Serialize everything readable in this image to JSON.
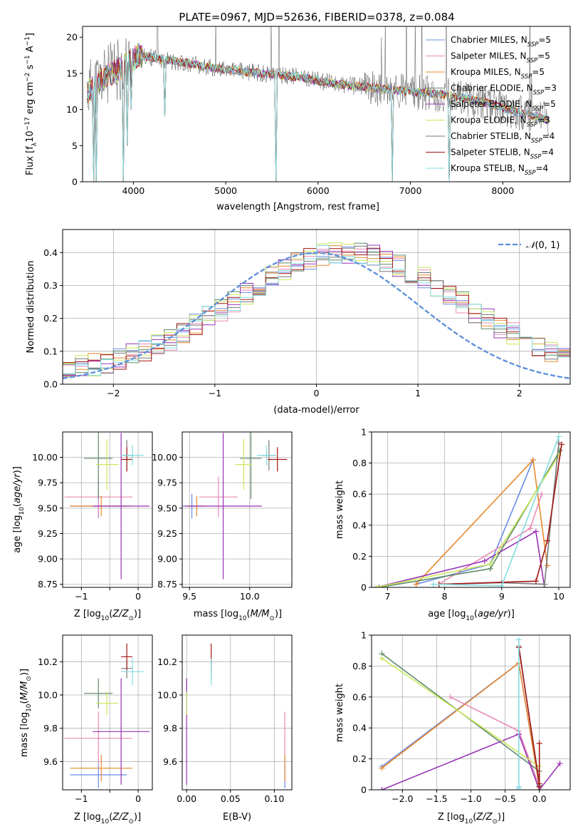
{
  "figure": {
    "title": "PLATE=0967, MJD=52636, FIBERID=0378, z=0.084"
  },
  "colors": {
    "Chabrier MILES": "#6b8ce6",
    "Salpeter MILES": "#e88ab8",
    "Kroupa MILES": "#e8892e",
    "Chabrier ELODIE": "#5e8a66",
    "Salpeter ELODIE": "#9933b5",
    "Kroupa ELODIE": "#c9e85a",
    "Chabrier STELIB": "#777777",
    "Salpeter STELIB": "#a31515",
    "Kroupa STELIB": "#82dce0",
    "normal_curve": "#5b8fd9"
  },
  "chart_data": [
    {
      "id": "spectrum",
      "type": "line",
      "title": "PLATE=0967, MJD=52636, FIBERID=0378, z=0.084",
      "xlabel": "wavelength [Angstrom, rest frame]",
      "ylabel": "Flux [f_λ 10^-17 erg cm^-2 s^-1 A^-1]",
      "xlim": [
        3450,
        8730
      ],
      "ylim": [
        0,
        21.5
      ],
      "xticks": [
        4000,
        5000,
        6000,
        7000,
        8000
      ],
      "yticks": [
        0,
        5,
        10,
        15,
        20
      ],
      "legend_placement": "right",
      "series": [
        {
          "name": "Chabrier MILES, N_SSP=5",
          "key": "Chabrier MILES"
        },
        {
          "name": "Salpeter MILES, N_SSP=5",
          "key": "Salpeter MILES"
        },
        {
          "name": "Kroupa MILES, N_SSP=5",
          "key": "Kroupa MILES"
        },
        {
          "name": "Chabrier ELODIE, N_SSP=3",
          "key": "Chabrier ELODIE"
        },
        {
          "name": "Salpeter ELODIE, N_SSP=5",
          "key": "Salpeter ELODIE"
        },
        {
          "name": "Kroupa ELODIE, N_SSP=3",
          "key": "Kroupa ELODIE"
        },
        {
          "name": "Chabrier STELIB, N_SSP=4",
          "key": "Chabrier STELIB"
        },
        {
          "name": "Salpeter STELIB, N_SSP=4",
          "key": "Salpeter STELIB"
        },
        {
          "name": "Kroupa STELIB, N_SSP=4",
          "key": "Kroupa STELIB"
        }
      ],
      "continuum": {
        "x": [
          3500,
          3700,
          3900,
          4050,
          4300,
          4600,
          5000,
          5400,
          5800,
          6200,
          6600,
          7000,
          7400,
          7800,
          8200,
          8500
        ],
        "y": [
          12.5,
          14.5,
          16,
          17.5,
          17,
          16.3,
          15.5,
          15,
          14.5,
          13.5,
          13,
          12.5,
          12,
          11,
          9.5,
          8.5
        ]
      },
      "model_absorption_dips": [
        {
          "x": 3570,
          "y": 0
        },
        {
          "x": 3600,
          "y": 0
        },
        {
          "x": 3890,
          "y": 0
        },
        {
          "x": 3935,
          "y": 5
        },
        {
          "x": 3970,
          "y": 10
        },
        {
          "x": 4340,
          "y": 9
        },
        {
          "x": 5550,
          "y": 0
        },
        {
          "x": 6800,
          "y": 0
        },
        {
          "x": 7420,
          "y": 0
        }
      ]
    },
    {
      "id": "residuals",
      "type": "line",
      "xlabel": "(data-model)/error",
      "ylabel": "Normed distribution",
      "xlim": [
        -2.5,
        2.5
      ],
      "ylim": [
        0,
        0.47
      ],
      "xticks": [
        -2,
        -1,
        0,
        1,
        2
      ],
      "yticks": [
        0.0,
        0.1,
        0.2,
        0.3,
        0.4
      ],
      "legend_placement": "top-right",
      "legend": "N(0,1)",
      "normal_curve": {
        "mean": 0,
        "sigma": 1
      }
    },
    {
      "id": "age_vs_Z",
      "type": "scatter",
      "xlabel": "Z [log10(Z/Z☉)]",
      "ylabel": "age [log10(age/yr)]",
      "xlim": [
        -1.33,
        0.25
      ],
      "ylim": [
        8.72,
        10.25
      ],
      "xticks": [
        -1,
        -0.5,
        0
      ],
      "xticklabels": [
        "−1",
        "",
        "0"
      ],
      "yticks": [
        8.75,
        9.0,
        9.25,
        9.5,
        9.75,
        10.0
      ],
      "yticklabels": [
        "8.75",
        "9.00",
        "9.25",
        "9.50",
        "9.75",
        "10.00"
      ]
    },
    {
      "id": "age_vs_mass",
      "type": "scatter",
      "xlabel": "mass [log10(M/M☉)]",
      "xlim": [
        9.44,
        10.35
      ],
      "ylim": [
        8.72,
        10.25
      ],
      "xticks": [
        9.5,
        10.0
      ],
      "xticklabels": [
        "9.5",
        "10.0"
      ],
      "yticks": [
        8.75,
        9.0,
        9.25,
        9.5,
        9.75,
        10.0
      ],
      "yticklabels": [
        "8.75",
        "9.00",
        "9.25",
        "9.50",
        "9.75",
        "10.00"
      ]
    },
    {
      "id": "weight_vs_age",
      "type": "line",
      "xlabel": "age [log10(age/yr)]",
      "ylabel": "mass weight",
      "xlim": [
        6.72,
        10.2
      ],
      "ylim": [
        0,
        1.0
      ],
      "xticks": [
        7,
        8,
        9,
        10
      ],
      "yticks": [
        0.0,
        0.2,
        0.4,
        0.6,
        0.8,
        1.0
      ]
    },
    {
      "id": "mass_vs_Z",
      "type": "scatter",
      "xlabel": "Z [log10(Z/Z☉)]",
      "ylabel": "mass [log10(M/M☉)]",
      "xlim": [
        -1.33,
        0.25
      ],
      "ylim": [
        9.43,
        10.36
      ],
      "xticks": [
        -1,
        -0.5,
        0
      ],
      "xticklabels": [
        "−1",
        "",
        "0"
      ],
      "yticks": [
        9.6,
        9.8,
        10.0,
        10.2
      ],
      "yticklabels": [
        "9.6",
        "9.8",
        "10.0",
        "10.2"
      ]
    },
    {
      "id": "mass_vs_ebv",
      "type": "scatter",
      "xlabel": "E(B-V)",
      "xlim": [
        -0.005,
        0.12
      ],
      "ylim": [
        9.43,
        10.36
      ],
      "xticks": [
        0.0,
        0.05,
        0.1
      ],
      "xticklabels": [
        "0.00",
        "0.05",
        "0.10"
      ],
      "yticks": [
        9.6,
        9.8,
        10.0,
        10.2
      ],
      "yticklabels": [
        "9.6",
        "9.8",
        "10.0",
        "10.2"
      ]
    },
    {
      "id": "weight_vs_Z",
      "type": "line",
      "xlabel": "Z [log10(Z/Z☉)]",
      "ylabel": "mass weight",
      "xlim": [
        -2.45,
        0.45
      ],
      "ylim": [
        0,
        1.0
      ],
      "xticks": [
        -2.0,
        -1.5,
        -1.0,
        -0.5,
        0.0
      ],
      "xticklabels": [
        "−2.0",
        "−1.5",
        "−1.0",
        "−0.5",
        "0.0"
      ],
      "yticks": [
        0.0,
        0.2,
        0.4,
        0.6,
        0.8,
        1.0
      ]
    }
  ],
  "models": [
    {
      "key": "Chabrier MILES",
      "ssp": [
        {
          "age": 9.55,
          "Z": -0.3,
          "w": 0.82
        },
        {
          "age": 7.5,
          "Z": 0.0,
          "w": 0.02
        },
        {
          "age": 8.8,
          "Z": -2.3,
          "w": 0.15
        }
      ],
      "sum": {
        "Z": -0.7,
        "Zerr": 0.5,
        "age": 9.52,
        "ageErr": 0.12,
        "mass": 9.52,
        "massErr": 0.08,
        "ebv": 0.112
      }
    },
    {
      "key": "Salpeter MILES",
      "ssp": [
        {
          "age": 9.7,
          "Z": -1.3,
          "w": 0.6
        },
        {
          "age": 9.5,
          "Z": -0.3,
          "w": 0.38
        },
        {
          "age": 7.9,
          "Z": 0.0,
          "w": 0.02
        }
      ],
      "sum": {
        "Z": -0.7,
        "Zerr": 0.6,
        "age": 9.61,
        "ageErr": 0.2,
        "mass": 9.74,
        "massErr": 0.16,
        "ebv": 0.112
      }
    },
    {
      "key": "Kroupa MILES",
      "ssp": [
        {
          "age": 9.55,
          "Z": -0.3,
          "w": 0.82
        },
        {
          "age": 7.5,
          "Z": 0.0,
          "w": 0.02
        },
        {
          "age": 9.8,
          "Z": -2.3,
          "w": 0.14
        }
      ],
      "sum": {
        "Z": -0.65,
        "Zerr": 0.55,
        "age": 9.52,
        "ageErr": 0.1,
        "mass": 9.56,
        "massErr": 0.08,
        "ebv": 0.112
      }
    },
    {
      "key": "Chabrier ELODIE",
      "ssp": [
        {
          "age": 10.02,
          "Z": -2.3,
          "w": 0.88
        },
        {
          "age": 8.8,
          "Z": 0.0,
          "w": 0.12
        },
        {
          "age": 6.85,
          "Z": 0.0,
          "w": 0.0
        }
      ],
      "sum": {
        "Z": -0.7,
        "Zerr": 0.25,
        "age": 9.99,
        "ageErr": 0.4,
        "mass": 10.01,
        "massErr": 0.09,
        "ebv": 0.0
      }
    },
    {
      "key": "Salpeter ELODIE",
      "ssp": [
        {
          "age": 9.6,
          "Z": -0.3,
          "w": 0.36
        },
        {
          "age": 8.7,
          "Z": 0.3,
          "w": 0.17
        },
        {
          "age": 6.8,
          "Z": -2.3,
          "w": 0.0
        },
        {
          "age": 9.75,
          "Z": 0.0,
          "w": 0.0
        }
      ],
      "sum": {
        "Z": -0.3,
        "Zerr": 0.5,
        "age": 9.52,
        "ageErr": 0.72,
        "mass": 9.78,
        "massErr": 0.32,
        "ebv": 0.0
      }
    },
    {
      "key": "Kroupa ELODIE",
      "ssp": [
        {
          "age": 10.0,
          "Z": -2.3,
          "w": 0.85
        },
        {
          "age": 8.8,
          "Z": 0.0,
          "w": 0.15
        },
        {
          "age": 6.8,
          "Z": 0.0,
          "w": 0.0
        }
      ],
      "sum": {
        "Z": -0.55,
        "Zerr": 0.2,
        "age": 9.93,
        "ageErr": 0.25,
        "mass": 9.95,
        "massErr": 0.07,
        "ebv": 0.0
      }
    },
    {
      "key": "Chabrier STELIB",
      "ssp": [
        {
          "age": 10.0,
          "Z": -0.3,
          "w": 0.93
        },
        {
          "age": 9.0,
          "Z": 0.0,
          "w": 0.03
        },
        {
          "age": 7.9,
          "Z": 0.0,
          "w": 0.02
        },
        {
          "age": 9.75,
          "Z": 0.0,
          "w": 0.02
        }
      ],
      "sum": {
        "Z": -0.2,
        "Zerr": 0.1,
        "age": 10.02,
        "ageErr": 0.15,
        "mass": 10.16,
        "massErr": 0.06,
        "ebv": 0.028
      }
    },
    {
      "key": "Salpeter STELIB",
      "ssp": [
        {
          "age": 10.05,
          "Z": -0.3,
          "w": 0.92
        },
        {
          "age": 9.6,
          "Z": 0.0,
          "w": 0.04
        },
        {
          "age": 7.9,
          "Z": 0.0,
          "w": 0.02
        },
        {
          "age": 9.8,
          "Z": 0.0,
          "w": 0.3
        }
      ],
      "sum": {
        "Z": -0.2,
        "Zerr": 0.1,
        "age": 9.98,
        "ageErr": 0.12,
        "mass": 10.23,
        "massErr": 0.08,
        "ebv": 0.028
      }
    },
    {
      "key": "Kroupa STELIB",
      "ssp": [
        {
          "age": 10.0,
          "Z": -0.3,
          "w": 0.97
        },
        {
          "age": 9.0,
          "Z": -0.3,
          "w": 0.01
        },
        {
          "age": 7.8,
          "Z": -0.3,
          "w": 0.02
        }
      ],
      "sum": {
        "Z": -0.1,
        "Zerr": 0.2,
        "age": 10.02,
        "ageErr": 0.1,
        "mass": 10.14,
        "massErr": 0.08,
        "ebv": 0.028
      }
    }
  ]
}
